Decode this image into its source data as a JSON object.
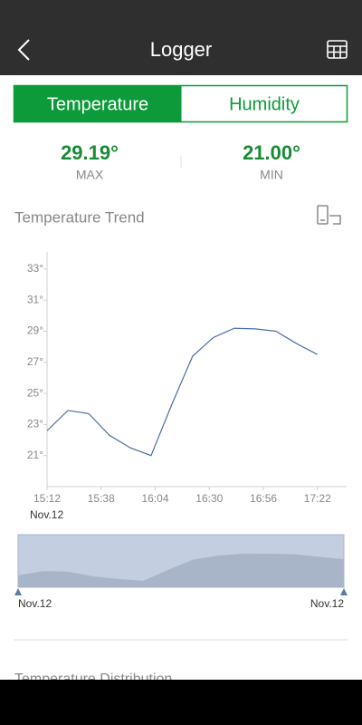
{
  "header": {
    "title": "Logger"
  },
  "tabs": [
    "Temperature",
    "Humidity"
  ],
  "stats": {
    "max": {
      "value": "29.19°",
      "label": "MAX"
    },
    "min": {
      "value": "21.00°",
      "label": "MIN"
    }
  },
  "chart_data": {
    "type": "line",
    "title": "Temperature Trend",
    "x": [
      "15:12",
      "15:22",
      "15:32",
      "15:42",
      "15:52",
      "16:02",
      "16:12",
      "16:22",
      "16:32",
      "16:42",
      "16:52",
      "17:02",
      "17:12",
      "17:22"
    ],
    "series": [
      {
        "color": "#4a6fa5",
        "values": [
          22.6,
          23.9,
          23.7,
          22.3,
          21.5,
          21.0,
          24.3,
          27.4,
          28.6,
          29.19,
          29.15,
          29.0,
          28.2,
          27.5
        ]
      }
    ],
    "xlim": [
      "15:12",
      "17:36"
    ],
    "xticks": [
      "15:12",
      "15:38",
      "16:04",
      "16:30",
      "16:56",
      "17:22"
    ],
    "ylim": [
      19,
      34.1
    ],
    "yticks": [
      {
        "value": 21,
        "label": "21°"
      },
      {
        "value": 23,
        "label": "23°"
      },
      {
        "value": 25,
        "label": "25°"
      },
      {
        "value": 27,
        "label": "27°"
      },
      {
        "value": 29,
        "label": "29°"
      },
      {
        "value": 31,
        "label": "31°"
      },
      {
        "value": 33,
        "label": "33°"
      }
    ],
    "date_label": "Nov.12"
  },
  "navigator": {
    "start_label": "Nov.12",
    "end_label": "Nov.12"
  },
  "next_section": "Temperature Distribution"
}
